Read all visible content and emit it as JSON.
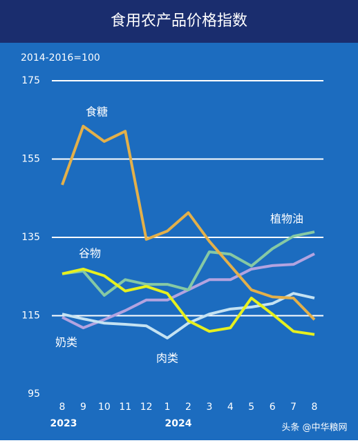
{
  "chart_data": {
    "type": "line",
    "title": "食用农产品价格指数",
    "subtitle": "2014-2016=100",
    "categories": [
      "8",
      "9",
      "10",
      "11",
      "12",
      "1",
      "2",
      "3",
      "4",
      "5",
      "6",
      "7",
      "8"
    ],
    "years": [
      "2023",
      "2024"
    ],
    "series": [
      {
        "name": "食糖",
        "color": "#e3b04a",
        "values": [
          148.4,
          163.4,
          159.5,
          162.1,
          134.5,
          136.6,
          141.3,
          134,
          127.8,
          121.6,
          119.8,
          119.5,
          114
        ]
      },
      {
        "name": "植物油",
        "color": "#86c9a4",
        "values": [
          125.7,
          126.4,
          120.2,
          124.2,
          123,
          123,
          121.6,
          131.3,
          130.7,
          127.7,
          132.1,
          135.3,
          136.4
        ]
      },
      {
        "name": "谷物",
        "color": "#e6f01e",
        "values": [
          125.7,
          126.9,
          125.2,
          121.3,
          122.5,
          120.7,
          113.7,
          111,
          111.9,
          119.5,
          115.4,
          111,
          110.2
        ]
      },
      {
        "name": "奶类",
        "color": "#b3a3e0",
        "values": [
          114.6,
          111.9,
          114,
          116.3,
          119,
          119,
          121.6,
          124.2,
          124.2,
          126.9,
          127.8,
          128.1,
          130.8
        ]
      },
      {
        "name": "肉类",
        "color": "#c4e2f2",
        "values": [
          115.4,
          114.2,
          113.1,
          112.8,
          112.4,
          109.3,
          113.1,
          115.4,
          116.7,
          117.2,
          118.1,
          120.7,
          119.5
        ]
      }
    ],
    "ylim": [
      95,
      175
    ],
    "yticks": [
      95,
      115,
      135,
      155,
      175
    ],
    "grid": true,
    "watermark": "头条 @中华粮网"
  }
}
